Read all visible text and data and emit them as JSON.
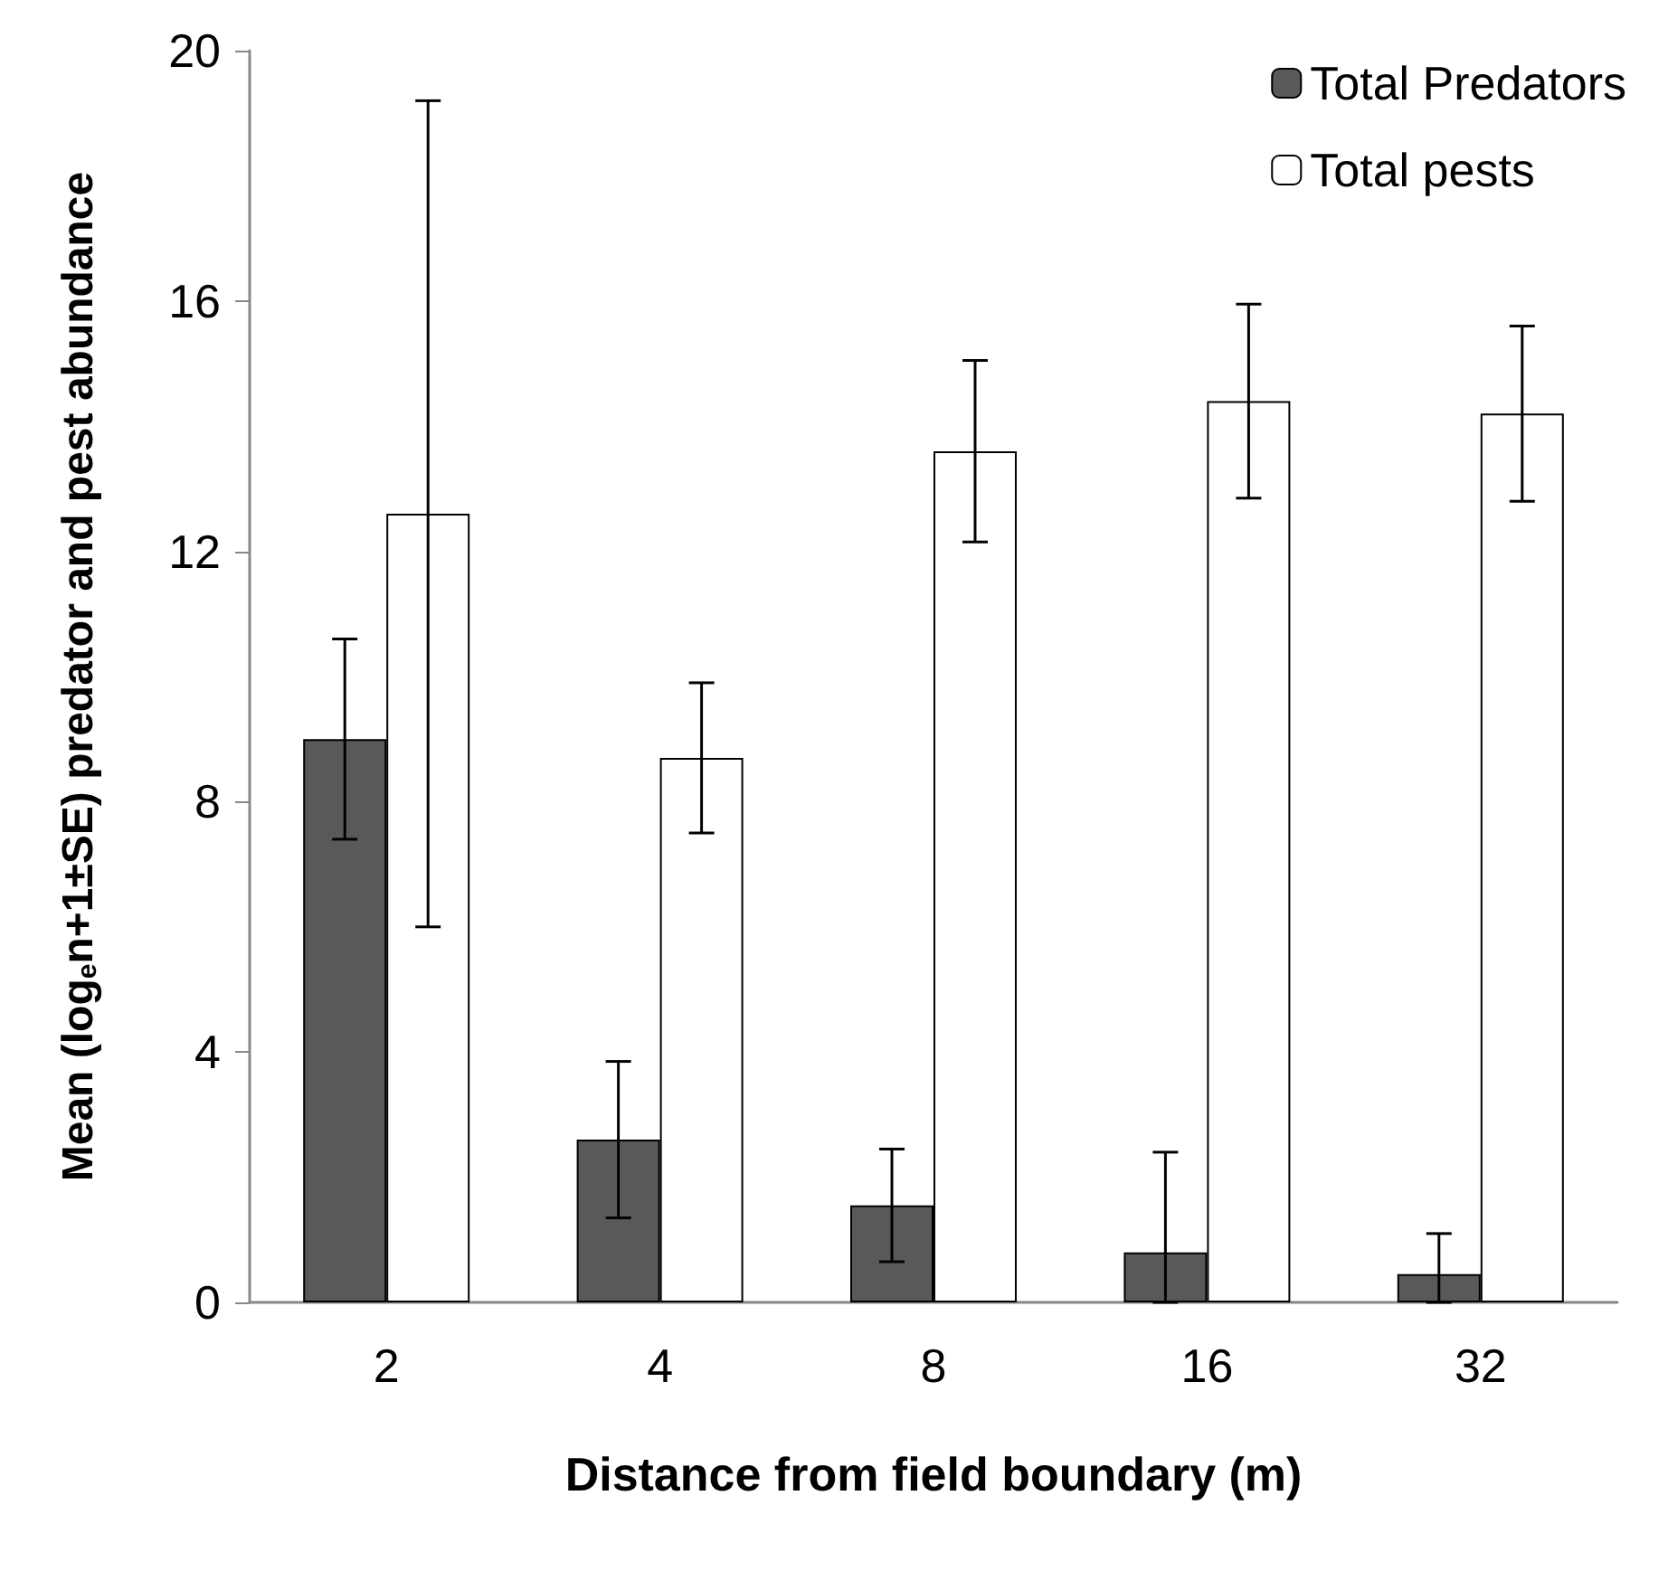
{
  "chart_data": {
    "type": "bar",
    "xlabel": "Distance from field boundary (m)",
    "ylabel": "Mean (log$_{e}$n+1±SE) predator and pest abundance",
    "categories": [
      "2",
      "4",
      "8",
      "16",
      "32"
    ],
    "series": [
      {
        "name": "Total Predators",
        "color": "#595959",
        "values": [
          9.0,
          2.6,
          1.55,
          0.8,
          0.45
        ],
        "errors": [
          1.6,
          1.25,
          0.9,
          [
            0,
            2.4
          ],
          [
            0,
            1.1
          ]
        ]
      },
      {
        "name": "Total pests",
        "color": "#ffffff",
        "values": [
          12.6,
          8.7,
          13.6,
          14.4,
          14.2
        ],
        "errors": [
          6.6,
          1.2,
          1.45,
          1.55,
          1.4
        ]
      }
    ],
    "ylim": [
      0,
      20
    ],
    "yticks": [
      0,
      4,
      8,
      12,
      16,
      20
    ],
    "grid": false,
    "legend": "top right"
  }
}
